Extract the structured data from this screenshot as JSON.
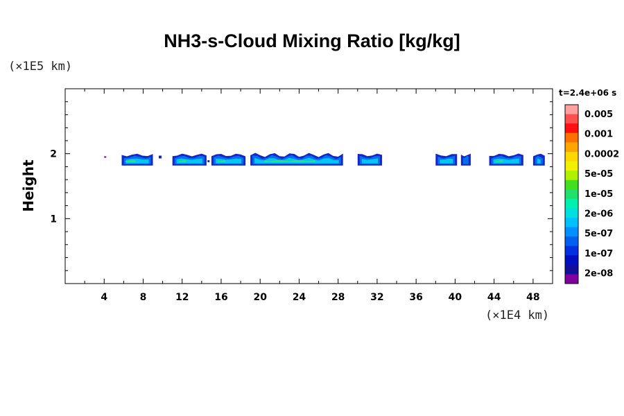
{
  "chart_data": {
    "type": "heatmap",
    "title": "NH3-s-Cloud Mixing Ratio [kg/kg]",
    "ylabel": "Height",
    "xlabel": "",
    "x_unit_label": "(×1E4 km)",
    "y_unit_label": "(×1E5 km)",
    "time_label": "t=2.4e+06 s",
    "xlim": [
      0,
      50
    ],
    "ylim": [
      0,
      3
    ],
    "x_ticks": [
      4,
      8,
      12,
      16,
      20,
      24,
      28,
      32,
      36,
      40,
      44,
      48
    ],
    "y_ticks": [
      1,
      2
    ],
    "colorbar": {
      "labels": [
        "0.005",
        "0.001",
        "0.0002",
        "5e-05",
        "1e-05",
        "2e-06",
        "5e-07",
        "1e-07",
        "2e-08"
      ],
      "colors": [
        "#ffa0a0",
        "#ff5050",
        "#ff1010",
        "#ff7000",
        "#ffa500",
        "#ffd700",
        "#f0f000",
        "#b0f000",
        "#40e020",
        "#20e070",
        "#00f0b0",
        "#00e0e0",
        "#00c0ff",
        "#0090ff",
        "#0060f0",
        "#0030e0",
        "#0010c0",
        "#10109a",
        "#8000a0"
      ]
    },
    "cloud_base_height": 1.85,
    "cloud_top_height": 1.98,
    "cloud_segments": [
      {
        "x_start": 5.8,
        "x_end": 9.0
      },
      {
        "x_start": 11.0,
        "x_end": 14.5
      },
      {
        "x_start": 15.0,
        "x_end": 18.5
      },
      {
        "x_start": 19.0,
        "x_end": 28.5
      },
      {
        "x_start": 30.0,
        "x_end": 32.5
      },
      {
        "x_start": 38.0,
        "x_end": 40.2
      },
      {
        "x_start": 40.6,
        "x_end": 41.6
      },
      {
        "x_start": 43.5,
        "x_end": 47.0
      },
      {
        "x_start": 48.0,
        "x_end": 49.2
      }
    ],
    "grid": false
  }
}
